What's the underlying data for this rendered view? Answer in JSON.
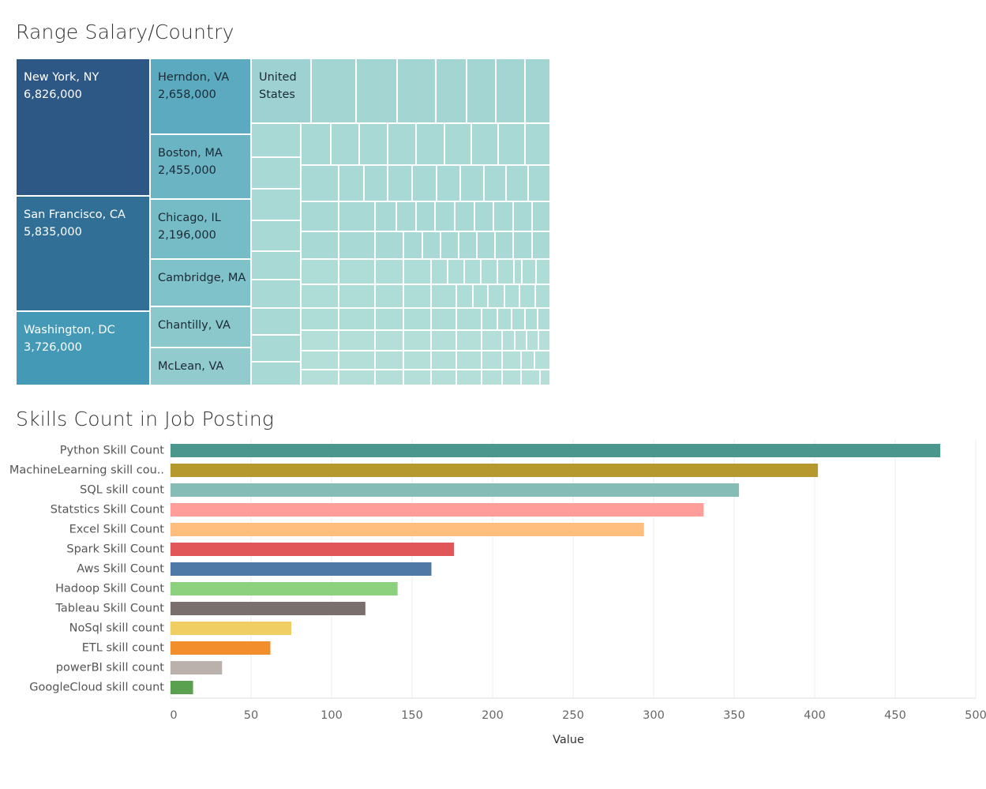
{
  "chart_data": [
    {
      "type": "treemap",
      "title": "Range Salary/Country",
      "tiles": [
        {
          "name": "New York, NY",
          "value": "6,826,000",
          "color": "#2d5886",
          "text_color": "#ffffff"
        },
        {
          "name": "San Francisco, CA",
          "value": "5,835,000",
          "color": "#316f96",
          "text_color": "#ffffff"
        },
        {
          "name": "Washington, DC",
          "value": "3,726,000",
          "color": "#4399b6",
          "text_color": "#ffffff"
        },
        {
          "name": "Herndon, VA",
          "value": "2,658,000",
          "color": "#5caac0",
          "text_color": "#1b2a35"
        },
        {
          "name": "Boston, MA",
          "value": "2,455,000",
          "color": "#6bb4c4",
          "text_color": "#1b2a35"
        },
        {
          "name": "Chicago, IL",
          "value": "2,196,000",
          "color": "#76bcc7",
          "text_color": "#1b2a35"
        },
        {
          "name": "Cambridge, MA",
          "value": "",
          "color": "#80c2ca",
          "text_color": "#1b2a35"
        },
        {
          "name": "Chantilly, VA",
          "value": "",
          "color": "#8bc8cc",
          "text_color": "#1b2a35"
        },
        {
          "name": "McLean, VA",
          "value": "",
          "color": "#91cbce",
          "text_color": "#1b2a35"
        },
        {
          "name": "United States",
          "value": "",
          "color": "#9ed2d2",
          "text_color": "#1b2a35"
        }
      ],
      "small_tile_colors": [
        "#a3d6d3",
        "#a8d9d4",
        "#aedcd6",
        "#b3dfd8"
      ]
    },
    {
      "type": "bar",
      "orientation": "horizontal",
      "title": "Skills Count in Job Posting",
      "xlabel": "Value",
      "xlim": [
        0,
        500
      ],
      "xticks": [
        0,
        50,
        100,
        150,
        200,
        250,
        300,
        350,
        400,
        450,
        500
      ],
      "categories": [
        "Python Skill Count",
        "MachineLearning skill cou..",
        "SQL skill count",
        "Statstics Skill Count",
        "Excel Skill Count",
        "Spark Skill Count",
        "Aws Skill Count",
        "Hadoop Skill Count",
        "Tableau Skill Count",
        "NoSql skill count",
        "ETL skill count",
        "powerBI skill count",
        "GoogleCloud skill count"
      ],
      "values": [
        478,
        402,
        353,
        331,
        294,
        176,
        162,
        141,
        121,
        75,
        62,
        32,
        14
      ],
      "colors": [
        "#4b978e",
        "#b5992f",
        "#86bcb6",
        "#ff9d9a",
        "#ffbe7d",
        "#e15759",
        "#4e79a7",
        "#8cd17d",
        "#79706e",
        "#f1ce63",
        "#f28e2b",
        "#bab0ac",
        "#59a14f"
      ]
    }
  ]
}
